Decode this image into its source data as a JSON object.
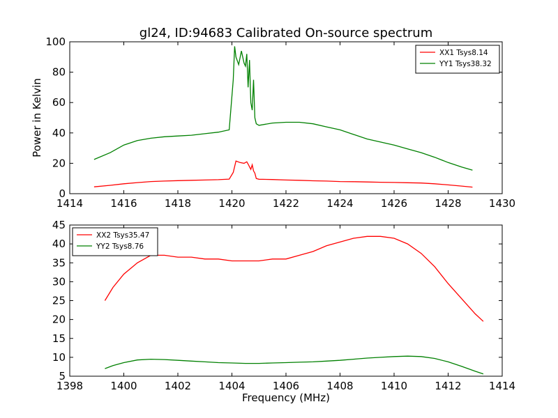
{
  "figure": {
    "title": "gl24, ID:94683 Calibrated On-source spectrum"
  },
  "chart_data": [
    {
      "type": "line",
      "title": "gl24, ID:94683 Calibrated On-source spectrum",
      "xlabel": "",
      "ylabel": "Power in Kelvin",
      "xlim": [
        1414,
        1430
      ],
      "ylim": [
        0,
        100
      ],
      "xticks": [
        1414,
        1416,
        1418,
        1420,
        1422,
        1424,
        1426,
        1428,
        1430
      ],
      "yticks": [
        0,
        20,
        40,
        60,
        80,
        100
      ],
      "grid": false,
      "legend": "top-right",
      "series": [
        {
          "name": "XX1 Tsys8.14",
          "color": "#ff0000",
          "x": [
            1414.9,
            1415.5,
            1416.0,
            1416.5,
            1417.0,
            1417.5,
            1418.0,
            1418.5,
            1419.0,
            1419.5,
            1419.9,
            1420.05,
            1420.15,
            1420.3,
            1420.45,
            1420.55,
            1420.6,
            1420.7,
            1420.75,
            1420.8,
            1420.85,
            1420.9,
            1421.0,
            1421.5,
            1422.0,
            1422.5,
            1423.0,
            1423.5,
            1424.0,
            1424.5,
            1425.0,
            1425.5,
            1426.0,
            1426.5,
            1427.0,
            1427.5,
            1428.0,
            1428.5,
            1428.9
          ],
          "values": [
            4.5,
            5.5,
            6.5,
            7.3,
            8.0,
            8.3,
            8.6,
            8.8,
            9.0,
            9.2,
            9.6,
            14.0,
            21.5,
            20.5,
            20.0,
            21.0,
            19.5,
            16.0,
            19.0,
            15.0,
            13.5,
            10.0,
            9.5,
            9.3,
            9.0,
            8.8,
            8.5,
            8.3,
            8.0,
            7.9,
            7.7,
            7.5,
            7.4,
            7.2,
            7.0,
            6.5,
            5.8,
            5.0,
            4.3
          ]
        },
        {
          "name": "YY1 Tsys38.32",
          "color": "#008000",
          "x": [
            1414.9,
            1415.5,
            1416.0,
            1416.5,
            1417.0,
            1417.5,
            1418.0,
            1418.5,
            1419.0,
            1419.5,
            1419.9,
            1420.05,
            1420.1,
            1420.15,
            1420.25,
            1420.35,
            1420.45,
            1420.5,
            1420.55,
            1420.6,
            1420.65,
            1420.7,
            1420.75,
            1420.8,
            1420.85,
            1420.9,
            1421.0,
            1421.5,
            1422.0,
            1422.5,
            1423.0,
            1423.5,
            1424.0,
            1424.5,
            1425.0,
            1425.5,
            1426.0,
            1426.5,
            1427.0,
            1427.5,
            1428.0,
            1428.5,
            1428.9
          ],
          "values": [
            22.5,
            27.0,
            32.0,
            35.0,
            36.5,
            37.5,
            38.0,
            38.5,
            39.5,
            40.5,
            42.0,
            75.0,
            97.0,
            90.0,
            85.0,
            94.0,
            86.0,
            84.0,
            92.0,
            70.0,
            88.0,
            60.0,
            55.0,
            75.0,
            50.0,
            46.0,
            45.0,
            46.5,
            47.0,
            47.0,
            46.0,
            44.0,
            42.0,
            39.0,
            36.0,
            34.0,
            32.0,
            29.5,
            27.0,
            24.0,
            20.5,
            17.5,
            15.5
          ]
        }
      ]
    },
    {
      "type": "line",
      "title": "",
      "xlabel": "Frequency (MHz)",
      "ylabel": "",
      "xlim": [
        1398,
        1414
      ],
      "ylim": [
        5,
        45
      ],
      "xticks": [
        1398,
        1400,
        1402,
        1404,
        1406,
        1408,
        1410,
        1412,
        1414
      ],
      "yticks": [
        5,
        10,
        15,
        20,
        25,
        30,
        35,
        40,
        45
      ],
      "grid": false,
      "legend": "top-left",
      "series": [
        {
          "name": "XX2 Tsys35.47",
          "color": "#ff0000",
          "x": [
            1399.3,
            1399.6,
            1400.0,
            1400.5,
            1401.0,
            1401.5,
            1402.0,
            1402.5,
            1403.0,
            1403.5,
            1404.0,
            1404.5,
            1405.0,
            1405.5,
            1406.0,
            1406.5,
            1407.0,
            1407.5,
            1408.0,
            1408.5,
            1409.0,
            1409.5,
            1410.0,
            1410.5,
            1411.0,
            1411.5,
            1412.0,
            1412.5,
            1413.0,
            1413.3
          ],
          "values": [
            25.0,
            28.5,
            32.0,
            35.0,
            37.0,
            37.0,
            36.5,
            36.5,
            36.0,
            36.0,
            35.5,
            35.5,
            35.5,
            36.0,
            36.0,
            37.0,
            38.0,
            39.5,
            40.5,
            41.5,
            42.0,
            42.0,
            41.5,
            40.0,
            37.5,
            34.0,
            29.5,
            25.5,
            21.5,
            19.5
          ]
        },
        {
          "name": "YY2 Tsys8.76",
          "color": "#008000",
          "x": [
            1399.3,
            1399.6,
            1400.0,
            1400.5,
            1401.0,
            1401.5,
            1402.0,
            1402.5,
            1403.0,
            1403.5,
            1404.0,
            1404.5,
            1405.0,
            1405.5,
            1406.0,
            1406.5,
            1407.0,
            1407.5,
            1408.0,
            1408.5,
            1409.0,
            1409.5,
            1410.0,
            1410.5,
            1411.0,
            1411.5,
            1412.0,
            1412.5,
            1413.0,
            1413.3
          ],
          "values": [
            7.0,
            7.8,
            8.6,
            9.3,
            9.5,
            9.4,
            9.2,
            9.0,
            8.8,
            8.6,
            8.5,
            8.4,
            8.4,
            8.5,
            8.6,
            8.7,
            8.8,
            9.0,
            9.2,
            9.5,
            9.8,
            10.0,
            10.2,
            10.3,
            10.2,
            9.7,
            8.8,
            7.6,
            6.3,
            5.6
          ]
        }
      ]
    }
  ]
}
